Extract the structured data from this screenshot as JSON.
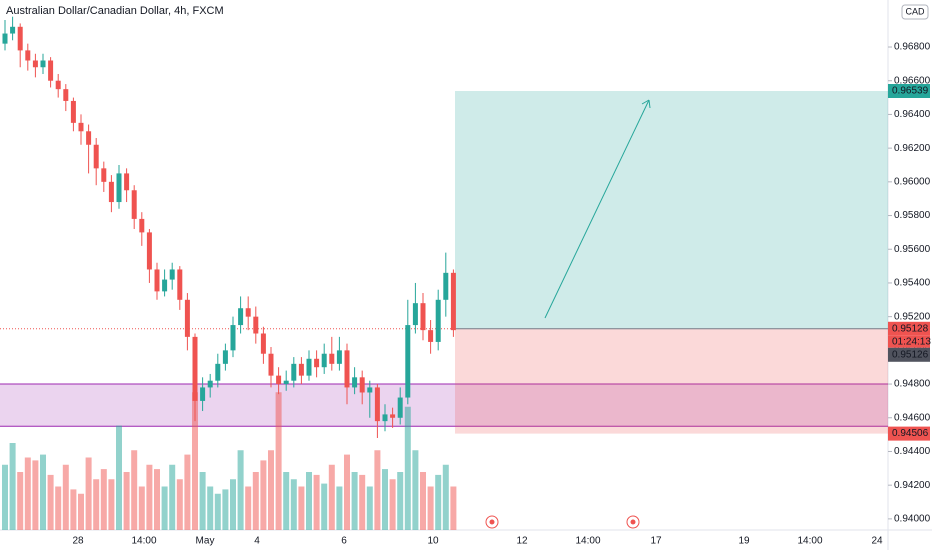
{
  "chart_data": {
    "type": "candlestick",
    "title": "Australian Dollar/Canadian Dollar, 4h, FXCM",
    "currency": "CAD",
    "up_color": "#26a69a",
    "down_color": "#ef5350",
    "open": [
      0.9682,
      0.9688,
      0.9692,
      0.9678,
      0.9672,
      0.9668,
      0.9672,
      0.966,
      0.9655,
      0.9648,
      0.9635,
      0.963,
      0.9622,
      0.9608,
      0.96,
      0.9588,
      0.9605,
      0.9595,
      0.9578,
      0.957,
      0.9548,
      0.9535,
      0.9542,
      0.9548,
      0.953,
      0.9508,
      0.947,
      0.9478,
      0.9482,
      0.9492,
      0.95,
      0.9515,
      0.9525,
      0.952,
      0.951,
      0.9498,
      0.9485,
      0.948,
      0.9482,
      0.9492,
      0.9485,
      0.9495,
      0.949,
      0.9498,
      0.9492,
      0.95,
      0.9478,
      0.9484,
      0.9475,
      0.9478,
      0.9458,
      0.9462,
      0.946,
      0.9472,
      0.9515,
      0.9528,
      0.9512,
      0.9505,
      0.953,
      0.9546
    ],
    "high": [
      0.9696,
      0.9698,
      0.9694,
      0.9682,
      0.9676,
      0.9676,
      0.9674,
      0.9664,
      0.9658,
      0.965,
      0.964,
      0.9634,
      0.9626,
      0.9612,
      0.9604,
      0.961,
      0.9608,
      0.9598,
      0.9582,
      0.9572,
      0.9552,
      0.9548,
      0.9552,
      0.955,
      0.9534,
      0.951,
      0.9484,
      0.9486,
      0.9498,
      0.9504,
      0.952,
      0.9532,
      0.9532,
      0.9526,
      0.9514,
      0.9502,
      0.949,
      0.9488,
      0.9496,
      0.9496,
      0.95,
      0.95,
      0.9504,
      0.9508,
      0.9508,
      0.9504,
      0.949,
      0.9488,
      0.9482,
      0.948,
      0.9468,
      0.9466,
      0.9478,
      0.953,
      0.954,
      0.9534,
      0.9518,
      0.9536,
      0.9558,
      0.9548
    ],
    "low": [
      0.9678,
      0.9684,
      0.9668,
      0.9666,
      0.9662,
      0.9664,
      0.9656,
      0.965,
      0.9642,
      0.963,
      0.9622,
      0.9605,
      0.9598,
      0.9594,
      0.9582,
      0.9584,
      0.9588,
      0.9572,
      0.9562,
      0.954,
      0.953,
      0.9532,
      0.9536,
      0.9524,
      0.95,
      0.9458,
      0.9464,
      0.9472,
      0.9478,
      0.9488,
      0.9496,
      0.951,
      0.9512,
      0.9504,
      0.9492,
      0.9478,
      0.9474,
      0.9476,
      0.9478,
      0.948,
      0.9482,
      0.9484,
      0.9486,
      0.9488,
      0.9488,
      0.9468,
      0.9474,
      0.9468,
      0.946,
      0.9448,
      0.9452,
      0.9454,
      0.9456,
      0.9468,
      0.951,
      0.9506,
      0.9498,
      0.95,
      0.952,
      0.9508
    ],
    "close": [
      0.9688,
      0.9692,
      0.9678,
      0.9672,
      0.9668,
      0.9672,
      0.966,
      0.9655,
      0.9648,
      0.9635,
      0.963,
      0.9622,
      0.9608,
      0.96,
      0.9588,
      0.9605,
      0.9595,
      0.9578,
      0.957,
      0.9548,
      0.9535,
      0.9542,
      0.9548,
      0.953,
      0.9508,
      0.947,
      0.9478,
      0.9482,
      0.9492,
      0.95,
      0.9515,
      0.9525,
      0.952,
      0.951,
      0.9498,
      0.9485,
      0.948,
      0.9482,
      0.9492,
      0.9485,
      0.9495,
      0.949,
      0.9498,
      0.9492,
      0.95,
      0.9478,
      0.9484,
      0.9475,
      0.9478,
      0.9458,
      0.9462,
      0.946,
      0.9472,
      0.9515,
      0.9528,
      0.9512,
      0.9505,
      0.953,
      0.9546,
      0.9512
    ],
    "volume": [
      45,
      60,
      40,
      50,
      48,
      52,
      38,
      30,
      45,
      28,
      25,
      50,
      35,
      42,
      35,
      72,
      40,
      55,
      30,
      45,
      42,
      30,
      45,
      35,
      52,
      95,
      40,
      30,
      25,
      28,
      35,
      55,
      30,
      40,
      48,
      55,
      95,
      40,
      35,
      30,
      40,
      38,
      32,
      45,
      30,
      52,
      40,
      38,
      30,
      55,
      42,
      35,
      40,
      85,
      55,
      40,
      30,
      38,
      45,
      30
    ],
    "volume_max": 100,
    "ylim": [
      0.93934,
      0.97079
    ],
    "yticks": [
      {
        "value": 0.94,
        "label": "0.94000"
      },
      {
        "value": 0.942,
        "label": "0.94200"
      },
      {
        "value": 0.944,
        "label": "0.94400"
      },
      {
        "value": 0.946,
        "label": "0.94600"
      },
      {
        "value": 0.948,
        "label": "0.94800"
      },
      {
        "value": 0.95,
        "label": "0.95000"
      },
      {
        "value": 0.952,
        "label": "0.95200"
      },
      {
        "value": 0.954,
        "label": "0.95400"
      },
      {
        "value": 0.956,
        "label": "0.95600"
      },
      {
        "value": 0.958,
        "label": "0.95800"
      },
      {
        "value": 0.96,
        "label": "0.96000"
      },
      {
        "value": 0.962,
        "label": "0.96200"
      },
      {
        "value": 0.964,
        "label": "0.96400"
      },
      {
        "value": 0.966,
        "label": "0.96600"
      },
      {
        "value": 0.968,
        "label": "0.96800"
      }
    ],
    "xticks": [
      "28",
      "14:00",
      "May",
      "4",
      "6",
      "10",
      "12",
      "14:00",
      "17",
      "19",
      "14:00",
      "24"
    ],
    "zone": [
      0.9455,
      0.948
    ],
    "position": {
      "entry": 0.95128,
      "target": 0.96539,
      "stop": 0.94506,
      "countdown": "01:24:13",
      "bid": 0.95126
    }
  }
}
